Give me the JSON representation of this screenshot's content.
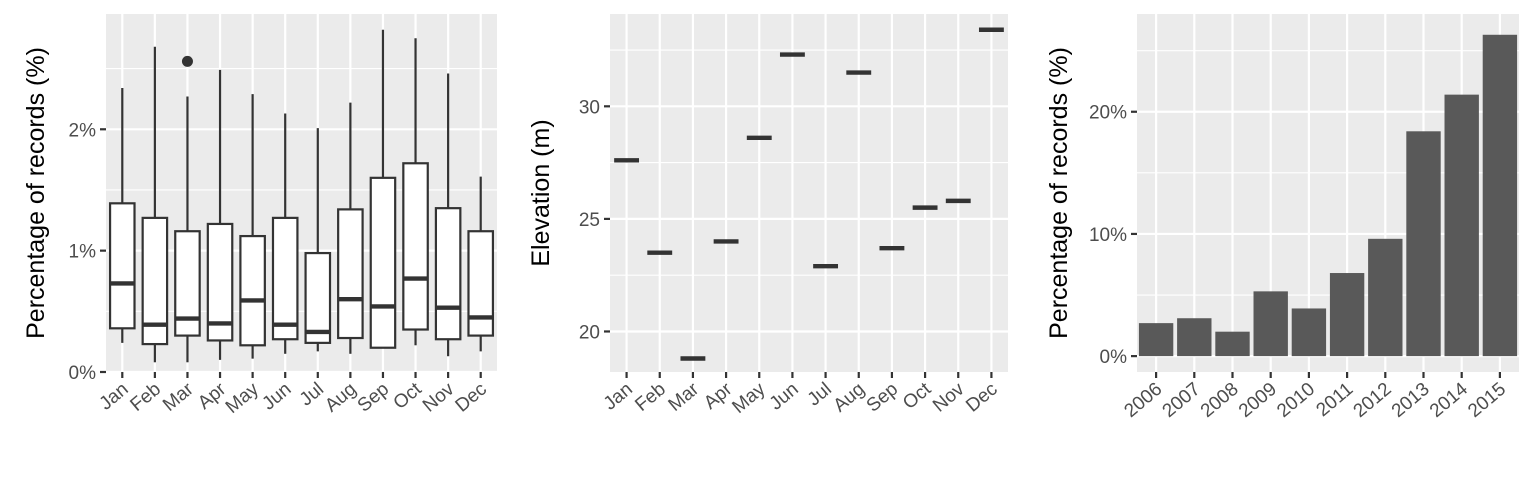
{
  "chart_data": [
    {
      "type": "box",
      "title": "",
      "xlabel": "",
      "ylabel": "Percentage of records (%)",
      "ylim": [
        0,
        2.95
      ],
      "y_ticks": [
        0,
        1,
        2
      ],
      "y_tick_labels": [
        "0%",
        "1%",
        "2%"
      ],
      "grid": true,
      "categories": [
        "Jan",
        "Feb",
        "Mar",
        "Apr",
        "May",
        "Jun",
        "Jul",
        "Aug",
        "Sep",
        "Oct",
        "Nov",
        "Dec"
      ],
      "boxes": [
        {
          "min": 0.24,
          "q1": 0.36,
          "median": 0.73,
          "q3": 1.39,
          "max": 2.34
        },
        {
          "min": 0.08,
          "q1": 0.23,
          "median": 0.39,
          "q3": 1.27,
          "max": 2.68
        },
        {
          "min": 0.08,
          "q1": 0.3,
          "median": 0.44,
          "q3": 1.16,
          "max": 2.27
        },
        {
          "min": 0.1,
          "q1": 0.26,
          "median": 0.4,
          "q3": 1.22,
          "max": 2.49
        },
        {
          "min": 0.11,
          "q1": 0.22,
          "median": 0.59,
          "q3": 1.12,
          "max": 2.29
        },
        {
          "min": 0.15,
          "q1": 0.27,
          "median": 0.39,
          "q3": 1.27,
          "max": 2.13
        },
        {
          "min": 0.17,
          "q1": 0.24,
          "median": 0.33,
          "q3": 0.98,
          "max": 2.01
        },
        {
          "min": 0.15,
          "q1": 0.28,
          "median": 0.6,
          "q3": 1.34,
          "max": 2.22
        },
        {
          "min": 0.2,
          "q1": 0.2,
          "median": 0.54,
          "q3": 1.6,
          "max": 2.82
        },
        {
          "min": 0.22,
          "q1": 0.35,
          "median": 0.77,
          "q3": 1.72,
          "max": 2.75
        },
        {
          "min": 0.13,
          "q1": 0.27,
          "median": 0.53,
          "q3": 1.35,
          "max": 2.46
        },
        {
          "min": 0.17,
          "q1": 0.3,
          "median": 0.45,
          "q3": 1.16,
          "max": 1.61
        }
      ],
      "outliers": [
        {
          "category": "Mar",
          "value": 2.56
        }
      ]
    },
    {
      "type": "crossbar",
      "title": "",
      "xlabel": "",
      "ylabel": "Elevation (m)",
      "ylim": [
        18.2,
        34.1
      ],
      "y_ticks": [
        20,
        25,
        30
      ],
      "y_tick_labels": [
        "20",
        "25",
        "30"
      ],
      "grid": true,
      "categories": [
        "Jan",
        "Feb",
        "Mar",
        "Apr",
        "May",
        "Jun",
        "Jul",
        "Aug",
        "Sep",
        "Oct",
        "Nov",
        "Dec"
      ],
      "values": [
        27.6,
        23.5,
        18.8,
        24.0,
        28.6,
        32.3,
        22.9,
        31.5,
        23.7,
        25.5,
        25.8,
        33.4
      ]
    },
    {
      "type": "bar",
      "title": "",
      "xlabel": "",
      "ylabel": "Percentage of records (%)",
      "ylim": [
        -1.3,
        28
      ],
      "y_ticks": [
        0,
        10,
        20
      ],
      "y_tick_labels": [
        "0%",
        "10%",
        "20%"
      ],
      "grid": true,
      "categories": [
        "2006",
        "2007",
        "2008",
        "2009",
        "2010",
        "2011",
        "2012",
        "2013",
        "2014",
        "2015"
      ],
      "values": [
        2.7,
        3.1,
        2.0,
        5.3,
        3.9,
        6.8,
        9.6,
        18.4,
        21.4,
        26.3
      ],
      "bar_color": "#595959"
    }
  ]
}
